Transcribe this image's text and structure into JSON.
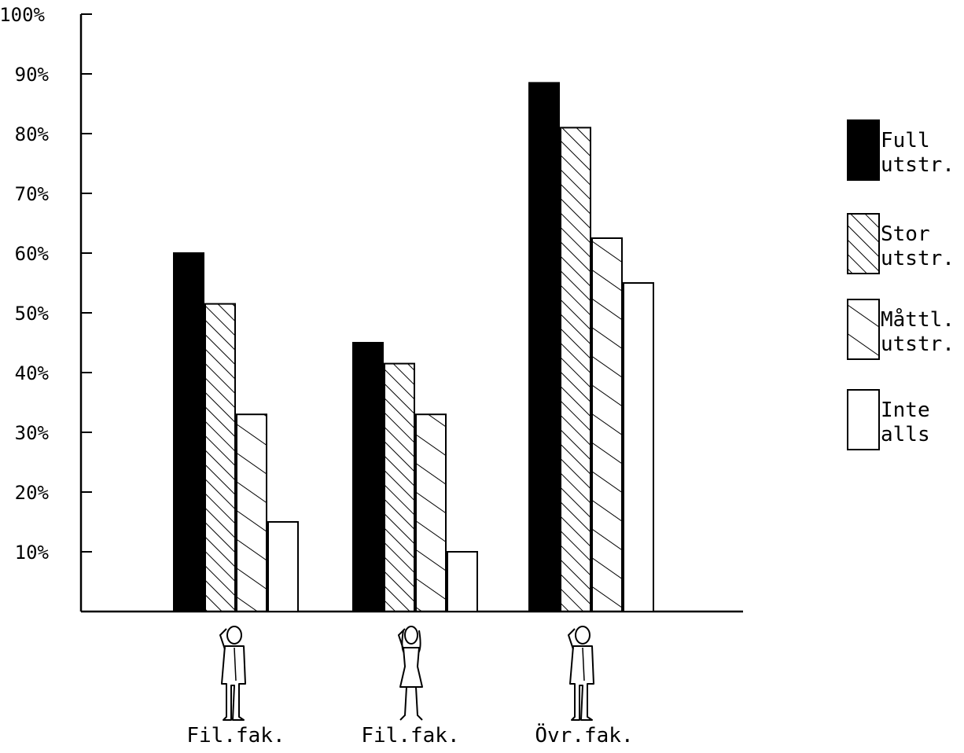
{
  "chart_data": {
    "type": "bar",
    "categories": [
      "Fil.fak.",
      "Fil.fak.",
      "Övr.fak."
    ],
    "category_icons": [
      "man-icon",
      "woman-icon",
      "man-icon"
    ],
    "series": [
      {
        "name": "Full utstr.",
        "legend_lines": [
          "Full",
          "utstr."
        ],
        "pattern": "solid",
        "values": [
          60,
          45,
          88.5
        ]
      },
      {
        "name": "Stor utstr.",
        "legend_lines": [
          "Stor",
          "utstr."
        ],
        "pattern": "dense-hatch",
        "values": [
          51.5,
          41.5,
          81
        ]
      },
      {
        "name": "Måttl. utstr.",
        "legend_lines": [
          "Måttl.",
          "utstr."
        ],
        "pattern": "sparse-hatch",
        "values": [
          33,
          33,
          62.5
        ]
      },
      {
        "name": "Inte alls",
        "legend_lines": [
          "Inte",
          "alls"
        ],
        "pattern": "empty",
        "values": [
          15,
          10,
          55
        ]
      }
    ],
    "yticks": [
      "10%",
      "20%",
      "30%",
      "40%",
      "50%",
      "60%",
      "70%",
      "80%",
      "90%",
      "100%"
    ],
    "ylim": [
      0,
      100
    ],
    "grid": false,
    "legend_position": "right",
    "title": "",
    "xlabel": "",
    "ylabel": "",
    "colors": {
      "ink": "#000000",
      "paper": "#ffffff"
    }
  }
}
